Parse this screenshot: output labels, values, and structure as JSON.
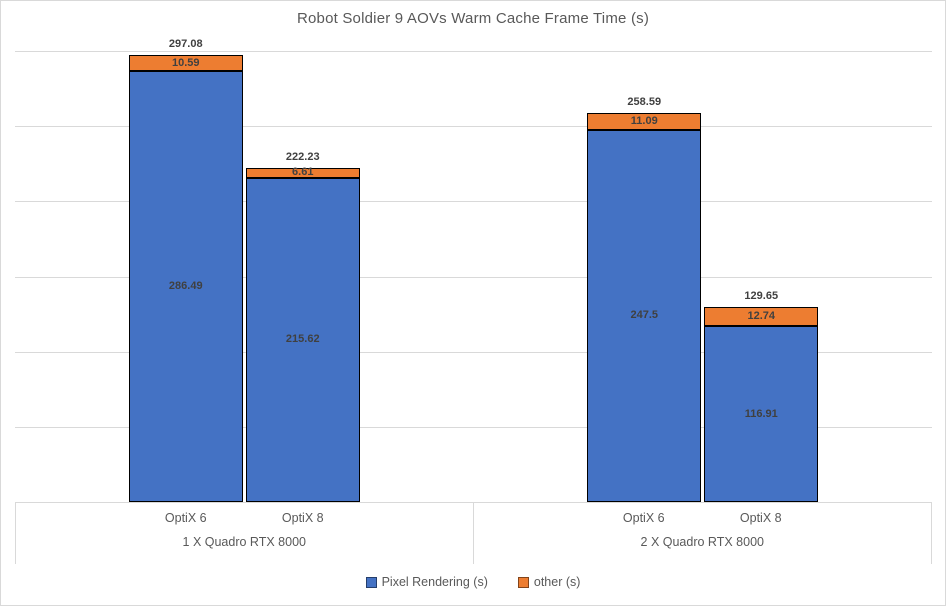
{
  "chart_data": {
    "type": "bar",
    "stacked": true,
    "title": "Robot Soldier 9 AOVs Warm Cache Frame Time (s)",
    "groups": [
      {
        "label": "1 X Quadro RTX 8000",
        "categories": [
          "OptiX 6",
          "OptiX 8"
        ]
      },
      {
        "label": "2 X Quadro RTX 8000",
        "categories": [
          "OptiX 6",
          "OptiX 8"
        ]
      }
    ],
    "series": [
      {
        "name": "Pixel Rendering (s)",
        "color": "#4472C4",
        "values": [
          286.49,
          215.62,
          247.5,
          116.91
        ]
      },
      {
        "name": "other (s)",
        "color": "#ED7D31",
        "values": [
          10.59,
          6.61,
          11.09,
          12.74
        ]
      }
    ],
    "totals": [
      297.08,
      222.23,
      258.59,
      129.65
    ],
    "ylim": [
      0,
      300
    ],
    "gridline_step": 50,
    "y_axis_tick_labels": "none",
    "legend_position": "bottom",
    "colors": {
      "grid": "#d9d9d9",
      "axis_line": "#d9d9d9",
      "title_text": "#595959",
      "axis_text": "#595959",
      "data_label_text": "#404040",
      "bar_border": "#000000",
      "frame_border": "#d9d9d9",
      "background": "#ffffff"
    }
  }
}
